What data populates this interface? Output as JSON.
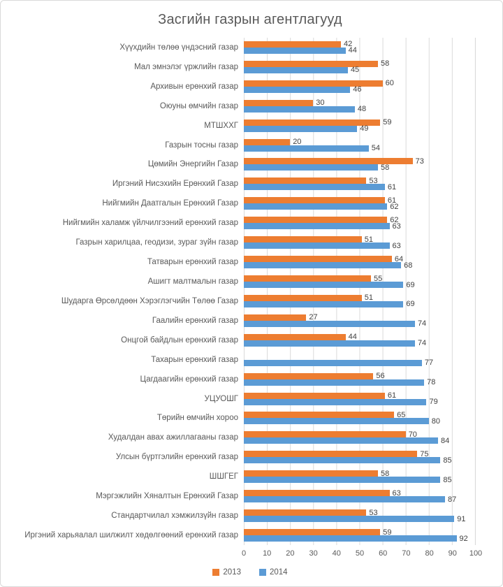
{
  "chart_data": {
    "type": "bar",
    "orientation": "horizontal",
    "title": "Засгийн газрын агентлагууд",
    "categories": [
      "Хүүхдийн төлөө үндэсний газар",
      "Мал эмнэлэг үржлийн газар",
      "Архивын ерөнхий газар",
      "Оюуны өмчийн газар",
      "МТШХХГ",
      "Газрын тосны газар",
      "Цөмийн Энергийн Газар",
      "Иргэний Нисэхийн Ерөнхий Газар",
      "Нийгмийн Даатгалын Ерөнхий Газар",
      "Нийгмийн халамж үйлчилгээний ерөнхий газар",
      "Газрын харилцаа, геодизи, зураг зүйн газар",
      "Татварын ерөнхий газар",
      "Ашигт малтмалын  газар",
      "Шударга Өрсөлдөөн Хэрэглэгчийн Төлөө Газар",
      "Гаалийн ерөнхий газар",
      "Онцгой байдлын ерөнхий газар",
      "Тахарын ерөнхий газар",
      "Цагдаагийн ерөнхий газар",
      "УЦУОШГ",
      "Төрийн өмчийн хороо",
      "Худалдан авах ажиллагааны газар",
      "Улсын бүртгэлийн ерөнхий газар",
      "ШШГЕГ",
      "Мэргэжлийн Хяналтын Ерөнхий Газар",
      "Стандартчилал хэмжилзүйн газар",
      "Иргэний харьяалал шилжилт хөдөлгөөний ерөнхий газар"
    ],
    "series": [
      {
        "name": "2013",
        "color": "#ED7D31",
        "values": [
          42,
          58,
          60,
          30,
          59,
          20,
          73,
          53,
          61,
          62,
          51,
          64,
          55,
          51,
          27,
          44,
          null,
          56,
          61,
          65,
          70,
          75,
          58,
          63,
          53,
          59
        ]
      },
      {
        "name": "2014",
        "color": "#5B9BD5",
        "values": [
          44,
          45,
          46,
          48,
          49,
          54,
          58,
          61,
          62,
          63,
          63,
          68,
          69,
          69,
          74,
          74,
          77,
          78,
          79,
          80,
          84,
          85,
          85,
          87,
          91,
          92
        ]
      }
    ],
    "xlim": [
      0,
      100
    ],
    "x_ticks": [
      0,
      10,
      20,
      30,
      40,
      50,
      60,
      70,
      80,
      90,
      100
    ],
    "grid": true,
    "legend_position": "bottom",
    "colors": {
      "gridline": "#D9D9D9",
      "title_text": "#595959",
      "label_text": "#595959",
      "data_label_text": "#404040"
    }
  }
}
